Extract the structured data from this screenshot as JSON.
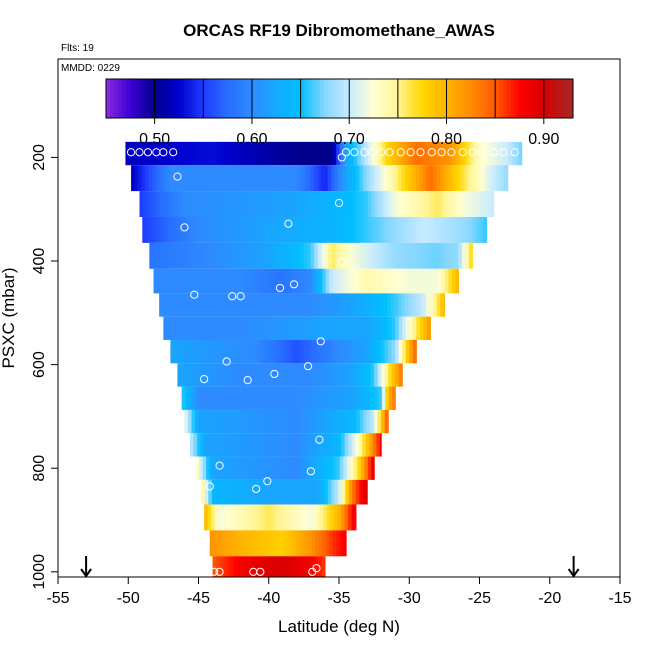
{
  "chart_data": {
    "type": "heatmap",
    "title": "ORCAS RF19 Dibromomethane_AWAS",
    "note_flights": "Flts: 19",
    "note_date": "MMDD: 0229",
    "xlabel": "Latitude (deg N)",
    "ylabel": "PSXC (mbar)",
    "xlim": [
      -55,
      -15
    ],
    "ylim": [
      1010,
      10
    ],
    "x_ticks": [
      -55,
      -50,
      -45,
      -40,
      -35,
      -30,
      -25,
      -20,
      -15
    ],
    "x_tick_labels": [
      "-55",
      "-50",
      "-45",
      "-40",
      "-35",
      "-30",
      "-25",
      "-20",
      "-15"
    ],
    "y_ticks": [
      200,
      400,
      600,
      800,
      1000
    ],
    "y_tick_labels": [
      "200",
      "400",
      "600",
      "800",
      "1000"
    ],
    "colorbar": {
      "range": [
        0.45,
        0.93
      ],
      "ticks": [
        0.5,
        0.6,
        0.7,
        0.8,
        0.9
      ],
      "tick_labels": [
        "0.50",
        "0.60",
        "0.70",
        "0.80",
        "0.90"
      ],
      "boundaries": [
        0.45,
        0.5,
        0.55,
        0.6,
        0.65,
        0.7,
        0.75,
        0.8,
        0.85,
        0.9,
        0.93
      ],
      "colors": [
        "#8a2be2",
        "#0000cd",
        "#1e3cff",
        "#2e8bff",
        "#00bfff",
        "#b8e6ff",
        "#ffffc8",
        "#ffd700",
        "#ff8c00",
        "#ff0000",
        "#a52a2a"
      ]
    },
    "flight_track_markers_lat": [
      -53,
      -18.3
    ],
    "rows": [
      {
        "p": 190,
        "lat_min": -50.2,
        "lat_max": -22.0,
        "stops": [
          [
            -50.2,
            0.52
          ],
          [
            -44,
            0.53
          ],
          [
            -38,
            0.5
          ],
          [
            -35.5,
            0.5
          ],
          [
            -34.5,
            0.62
          ],
          [
            -33,
            0.7
          ],
          [
            -31.5,
            0.78
          ],
          [
            -29.5,
            0.84
          ],
          [
            -27,
            0.82
          ],
          [
            -25,
            0.73
          ],
          [
            -23,
            0.7
          ],
          [
            -22,
            0.67
          ]
        ]
      },
      {
        "p": 240,
        "lat_min": -49.8,
        "lat_max": -23.0,
        "stops": [
          [
            -49.8,
            0.52
          ],
          [
            -47,
            0.6
          ],
          [
            -38,
            0.6
          ],
          [
            -36,
            0.54
          ],
          [
            -34.5,
            0.62
          ],
          [
            -33,
            0.68
          ],
          [
            -31,
            0.75
          ],
          [
            -28.5,
            0.84
          ],
          [
            -26,
            0.76
          ],
          [
            -24,
            0.7
          ],
          [
            -23,
            0.68
          ]
        ]
      },
      {
        "p": 290,
        "lat_min": -49.2,
        "lat_max": -24.0,
        "stops": [
          [
            -49.2,
            0.55
          ],
          [
            -46,
            0.6
          ],
          [
            -38,
            0.62
          ],
          [
            -35,
            0.64
          ],
          [
            -33,
            0.66
          ],
          [
            -31,
            0.72
          ],
          [
            -28,
            0.76
          ],
          [
            -26,
            0.72
          ],
          [
            -24,
            0.7
          ]
        ]
      },
      {
        "p": 340,
        "lat_min": -49.0,
        "lat_max": -24.5,
        "stops": [
          [
            -49,
            0.55
          ],
          [
            -45,
            0.6
          ],
          [
            -40,
            0.62
          ],
          [
            -35,
            0.64
          ],
          [
            -32,
            0.67
          ],
          [
            -29,
            0.7
          ],
          [
            -26,
            0.68
          ],
          [
            -24.5,
            0.66
          ]
        ]
      },
      {
        "p": 390,
        "lat_min": -48.5,
        "lat_max": -25.5,
        "stops": [
          [
            -48.5,
            0.58
          ],
          [
            -44,
            0.6
          ],
          [
            -40,
            0.62
          ],
          [
            -37,
            0.66
          ],
          [
            -35.5,
            0.76
          ],
          [
            -34,
            0.72
          ],
          [
            -31,
            0.68
          ],
          [
            -28,
            0.67
          ],
          [
            -26.5,
            0.68
          ],
          [
            -25.5,
            0.78
          ]
        ]
      },
      {
        "p": 440,
        "lat_min": -48.2,
        "lat_max": -26.5,
        "stops": [
          [
            -48.2,
            0.6
          ],
          [
            -42,
            0.6
          ],
          [
            -39,
            0.58
          ],
          [
            -37,
            0.6
          ],
          [
            -35.5,
            0.7
          ],
          [
            -33,
            0.74
          ],
          [
            -30,
            0.72
          ],
          [
            -28,
            0.72
          ],
          [
            -26.5,
            0.8
          ]
        ]
      },
      {
        "p": 485,
        "lat_min": -47.8,
        "lat_max": -27.5,
        "stops": [
          [
            -47.8,
            0.6
          ],
          [
            -44,
            0.6
          ],
          [
            -40,
            0.6
          ],
          [
            -37,
            0.6
          ],
          [
            -34,
            0.62
          ],
          [
            -31,
            0.66
          ],
          [
            -29,
            0.7
          ],
          [
            -28,
            0.76
          ],
          [
            -27.5,
            0.8
          ]
        ]
      },
      {
        "p": 530,
        "lat_min": -47.5,
        "lat_max": -28.5,
        "stops": [
          [
            -47.5,
            0.6
          ],
          [
            -42,
            0.6
          ],
          [
            -36,
            0.62
          ],
          [
            -33,
            0.62
          ],
          [
            -31,
            0.66
          ],
          [
            -29.5,
            0.76
          ],
          [
            -28.5,
            0.82
          ]
        ]
      },
      {
        "p": 575,
        "lat_min": -47.0,
        "lat_max": -29.5,
        "stops": [
          [
            -47,
            0.62
          ],
          [
            -41,
            0.6
          ],
          [
            -38,
            0.56
          ],
          [
            -35,
            0.6
          ],
          [
            -33,
            0.62
          ],
          [
            -31,
            0.68
          ],
          [
            -30,
            0.8
          ],
          [
            -29.5,
            0.85
          ]
        ]
      },
      {
        "p": 620,
        "lat_min": -46.5,
        "lat_max": -30.5,
        "stops": [
          [
            -46.5,
            0.62
          ],
          [
            -42,
            0.6
          ],
          [
            -37,
            0.6
          ],
          [
            -34,
            0.62
          ],
          [
            -32.5,
            0.66
          ],
          [
            -31.5,
            0.76
          ],
          [
            -30.5,
            0.84
          ]
        ]
      },
      {
        "p": 665,
        "lat_min": -46.2,
        "lat_max": -31.0,
        "stops": [
          [
            -46.2,
            0.66
          ],
          [
            -45,
            0.6
          ],
          [
            -38,
            0.6
          ],
          [
            -34,
            0.62
          ],
          [
            -32,
            0.66
          ],
          [
            -31.5,
            0.8
          ],
          [
            -31,
            0.84
          ]
        ]
      },
      {
        "p": 710,
        "lat_min": -46.0,
        "lat_max": -31.5,
        "stops": [
          [
            -46,
            0.72
          ],
          [
            -45,
            0.62
          ],
          [
            -38,
            0.6
          ],
          [
            -34,
            0.64
          ],
          [
            -32.5,
            0.7
          ],
          [
            -31.5,
            0.86
          ]
        ]
      },
      {
        "p": 755,
        "lat_min": -45.6,
        "lat_max": -32.0,
        "stops": [
          [
            -45.6,
            0.7
          ],
          [
            -44.5,
            0.62
          ],
          [
            -38,
            0.6
          ],
          [
            -35,
            0.64
          ],
          [
            -33.5,
            0.74
          ],
          [
            -32,
            0.88
          ]
        ]
      },
      {
        "p": 800,
        "lat_min": -45.2,
        "lat_max": -32.5,
        "stops": [
          [
            -45.2,
            0.74
          ],
          [
            -44,
            0.62
          ],
          [
            -38,
            0.6
          ],
          [
            -35,
            0.66
          ],
          [
            -33.5,
            0.78
          ],
          [
            -32.5,
            0.9
          ]
        ]
      },
      {
        "p": 845,
        "lat_min": -44.8,
        "lat_max": -33.0,
        "stops": [
          [
            -44.8,
            0.76
          ],
          [
            -44,
            0.64
          ],
          [
            -40,
            0.62
          ],
          [
            -36.5,
            0.62
          ],
          [
            -35,
            0.7
          ],
          [
            -34,
            0.84
          ],
          [
            -33,
            0.9
          ]
        ]
      },
      {
        "p": 895,
        "lat_min": -44.6,
        "lat_max": -33.8,
        "stops": [
          [
            -44.6,
            0.8
          ],
          [
            -43.5,
            0.72
          ],
          [
            -40,
            0.76
          ],
          [
            -37,
            0.72
          ],
          [
            -35,
            0.8
          ],
          [
            -34,
            0.88
          ]
        ]
      },
      {
        "p": 945,
        "lat_min": -44.2,
        "lat_max": -34.5,
        "stops": [
          [
            -44.2,
            0.82
          ],
          [
            -42,
            0.8
          ],
          [
            -39,
            0.78
          ],
          [
            -37,
            0.82
          ],
          [
            -35.5,
            0.86
          ],
          [
            -34.5,
            0.88
          ]
        ]
      },
      {
        "p": 995,
        "lat_min": -44.0,
        "lat_max": -36.0,
        "stops": [
          [
            -44,
            0.85
          ],
          [
            -42,
            0.88
          ],
          [
            -39,
            0.9
          ],
          [
            -37,
            0.88
          ],
          [
            -36,
            0.86
          ]
        ]
      }
    ],
    "sample_points": [
      {
        "lat": -49.8,
        "p": 190
      },
      {
        "lat": -49.2,
        "p": 190
      },
      {
        "lat": -48.6,
        "p": 190
      },
      {
        "lat": -48.0,
        "p": 190
      },
      {
        "lat": -47.5,
        "p": 190
      },
      {
        "lat": -46.8,
        "p": 190
      },
      {
        "lat": -34.8,
        "p": 200
      },
      {
        "lat": -34.5,
        "p": 190
      },
      {
        "lat": -33.9,
        "p": 190
      },
      {
        "lat": -33.2,
        "p": 190
      },
      {
        "lat": -32.6,
        "p": 190
      },
      {
        "lat": -32.0,
        "p": 190
      },
      {
        "lat": -31.4,
        "p": 190
      },
      {
        "lat": -30.6,
        "p": 190
      },
      {
        "lat": -29.9,
        "p": 190
      },
      {
        "lat": -29.2,
        "p": 190
      },
      {
        "lat": -28.4,
        "p": 190
      },
      {
        "lat": -27.7,
        "p": 190
      },
      {
        "lat": -27.0,
        "p": 190
      },
      {
        "lat": -26.2,
        "p": 190
      },
      {
        "lat": -25.5,
        "p": 190
      },
      {
        "lat": -24.8,
        "p": 190
      },
      {
        "lat": -24.0,
        "p": 190
      },
      {
        "lat": -23.3,
        "p": 190
      },
      {
        "lat": -22.5,
        "p": 190
      },
      {
        "lat": -46.5,
        "p": 237
      },
      {
        "lat": -35.0,
        "p": 288
      },
      {
        "lat": -46.0,
        "p": 335
      },
      {
        "lat": -38.6,
        "p": 328
      },
      {
        "lat": -34.8,
        "p": 402
      },
      {
        "lat": -38.2,
        "p": 445
      },
      {
        "lat": -39.2,
        "p": 452
      },
      {
        "lat": -45.3,
        "p": 465
      },
      {
        "lat": -42.6,
        "p": 468
      },
      {
        "lat": -42.0,
        "p": 468
      },
      {
        "lat": -36.3,
        "p": 555
      },
      {
        "lat": -43.0,
        "p": 594
      },
      {
        "lat": -37.2,
        "p": 603
      },
      {
        "lat": -39.6,
        "p": 618
      },
      {
        "lat": -44.6,
        "p": 628
      },
      {
        "lat": -41.5,
        "p": 630
      },
      {
        "lat": -36.4,
        "p": 745
      },
      {
        "lat": -43.5,
        "p": 795
      },
      {
        "lat": -37.0,
        "p": 806
      },
      {
        "lat": -40.1,
        "p": 825
      },
      {
        "lat": -44.2,
        "p": 835
      },
      {
        "lat": -40.9,
        "p": 840
      },
      {
        "lat": -43.9,
        "p": 1000
      },
      {
        "lat": -43.5,
        "p": 1000
      },
      {
        "lat": -41.1,
        "p": 1000
      },
      {
        "lat": -40.6,
        "p": 1000
      },
      {
        "lat": -36.9,
        "p": 1000
      },
      {
        "lat": -36.6,
        "p": 993
      }
    ]
  }
}
